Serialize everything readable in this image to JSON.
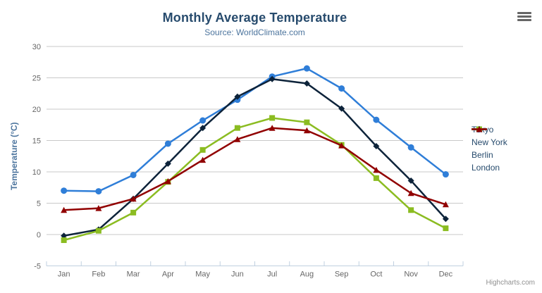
{
  "chart_data": {
    "type": "line",
    "title": "Monthly Average Temperature",
    "subtitle": "Source: WorldClimate.com",
    "categories": [
      "Jan",
      "Feb",
      "Mar",
      "Apr",
      "May",
      "Jun",
      "Jul",
      "Aug",
      "Sep",
      "Oct",
      "Nov",
      "Dec"
    ],
    "series": [
      {
        "name": "Tokyo",
        "color": "#2f7ed8",
        "marker": "circle",
        "values": [
          7.0,
          6.9,
          9.5,
          14.5,
          18.2,
          21.5,
          25.2,
          26.5,
          23.3,
          18.3,
          13.9,
          9.6
        ]
      },
      {
        "name": "New York",
        "color": "#0d233a",
        "marker": "diamond",
        "values": [
          -0.2,
          0.8,
          5.7,
          11.3,
          17.0,
          22.0,
          24.8,
          24.1,
          20.1,
          14.1,
          8.6,
          2.5
        ]
      },
      {
        "name": "Berlin",
        "color": "#8bbc21",
        "marker": "square",
        "values": [
          -0.9,
          0.6,
          3.5,
          8.4,
          13.5,
          17.0,
          18.6,
          17.9,
          14.3,
          9.0,
          3.9,
          1.0
        ]
      },
      {
        "name": "London",
        "color": "#910000",
        "marker": "triangle",
        "values": [
          3.9,
          4.2,
          5.7,
          8.5,
          11.9,
          15.2,
          17.0,
          16.6,
          14.2,
          10.3,
          6.6,
          4.8
        ]
      }
    ],
    "xlabel": "",
    "ylabel": "Temperature (°C)",
    "ylim": [
      -5,
      30
    ],
    "yticks": [
      -5,
      0,
      5,
      10,
      15,
      20,
      25,
      30
    ],
    "grid": true,
    "legend_position": "right",
    "credits": "Highcharts.com"
  },
  "styles": {
    "title_color": "#274b6d",
    "subtitle_color": "#4d759e",
    "axis_label_color": "#666666",
    "axis_title_color": "#4d759e",
    "legend_text_color": "#274b6d",
    "grid_color": "#c9c9c9",
    "axis_line_color": "#c0d0e0",
    "credits_color": "#909090",
    "burger_color": "#666666"
  },
  "export_menu": {
    "icon": "hamburger-icon"
  }
}
